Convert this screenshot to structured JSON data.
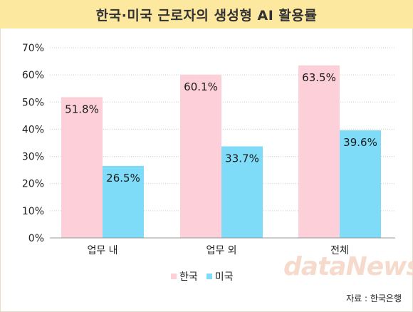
{
  "chart_data": {
    "type": "bar",
    "title": "한국·미국 근로자의 생성형 AI 활용률",
    "categories": [
      "업무 내",
      "업무 외",
      "전체"
    ],
    "series": [
      {
        "name": "한국",
        "values": [
          51.8,
          60.1,
          63.5
        ],
        "labels": [
          "51.8%",
          "60.1%",
          "63.5%"
        ],
        "color": "#fdcfd9"
      },
      {
        "name": "미국",
        "values": [
          26.5,
          33.7,
          39.6
        ],
        "labels": [
          "26.5%",
          "33.7%",
          "39.6%"
        ],
        "color": "#7fdcf8"
      }
    ],
    "yticks": [
      "0%",
      "10%",
      "20%",
      "30%",
      "40%",
      "50%",
      "60%",
      "70%"
    ],
    "ylim": [
      0,
      70
    ],
    "grid": true,
    "legend_position": "bottom-center"
  },
  "watermark": "dataNews",
  "source": "자료 : 한국은행",
  "colors": {
    "title_bg": "#fde8a0",
    "grid": "#cccccc"
  }
}
